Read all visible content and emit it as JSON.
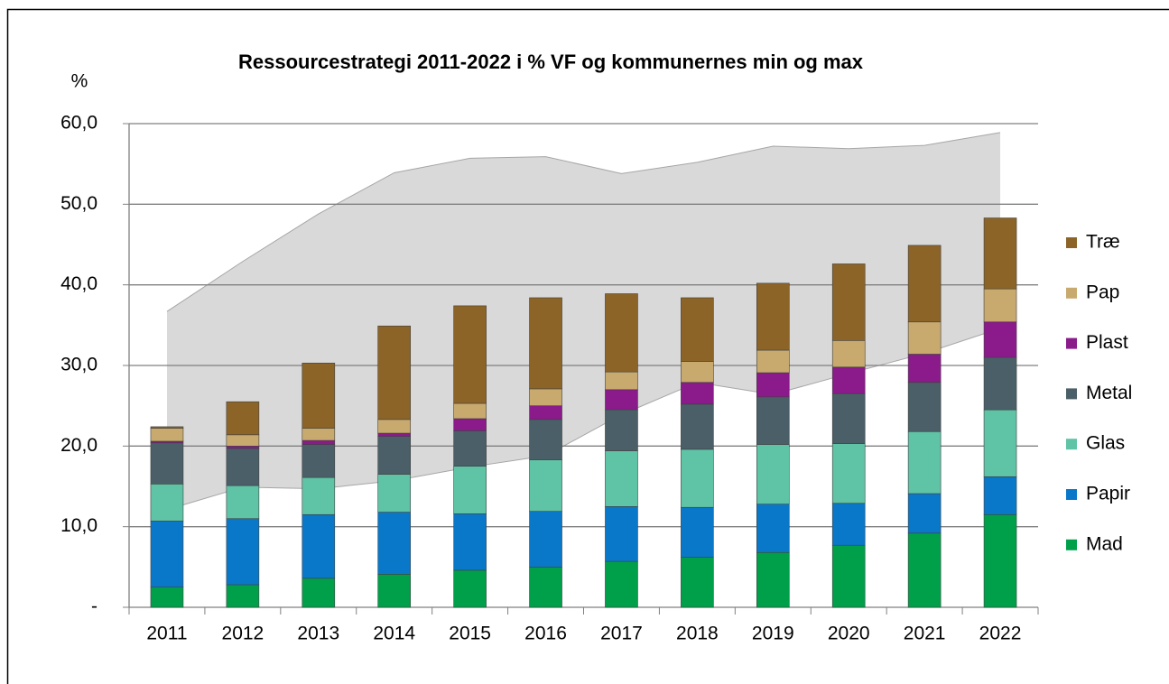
{
  "chart_data": {
    "type": "bar",
    "stacked": true,
    "title": "Ressourcestrategi 2011-2022 i %  VF og kommunernes min og max",
    "y_label": "%",
    "categories": [
      "2011",
      "2012",
      "2013",
      "2014",
      "2015",
      "2016",
      "2017",
      "2018",
      "2019",
      "2020",
      "2021",
      "2022"
    ],
    "series": [
      {
        "name": "Mad",
        "color": "#00a04b",
        "values": [
          2.5,
          2.8,
          3.6,
          4.1,
          4.6,
          5.0,
          5.7,
          6.2,
          6.8,
          7.7,
          9.2,
          11.5
        ]
      },
      {
        "name": "Papir",
        "color": "#0a78c8",
        "values": [
          8.2,
          8.2,
          7.9,
          7.7,
          7.0,
          6.9,
          6.8,
          6.2,
          6.0,
          5.2,
          4.9,
          4.7
        ]
      },
      {
        "name": "Glas",
        "color": "#5fc3a5",
        "values": [
          4.6,
          4.1,
          4.6,
          4.7,
          5.9,
          6.4,
          6.9,
          7.2,
          7.4,
          7.4,
          7.7,
          8.3
        ]
      },
      {
        "name": "Metal",
        "color": "#4a5f68",
        "values": [
          5.1,
          4.6,
          4.1,
          4.7,
          4.4,
          5.0,
          5.1,
          5.6,
          5.9,
          6.2,
          6.1,
          6.5
        ]
      },
      {
        "name": "Plast",
        "color": "#8b1a8b",
        "values": [
          0.2,
          0.3,
          0.5,
          0.4,
          1.5,
          1.7,
          2.5,
          2.7,
          3.0,
          3.3,
          3.5,
          4.4
        ]
      },
      {
        "name": "Pap",
        "color": "#c8aa6e",
        "values": [
          1.6,
          1.4,
          1.5,
          1.7,
          1.9,
          2.1,
          2.2,
          2.6,
          2.8,
          3.3,
          4.0,
          4.1
        ]
      },
      {
        "name": "Træ",
        "color": "#8c6428",
        "values": [
          0.2,
          4.1,
          8.1,
          11.6,
          12.1,
          11.3,
          9.7,
          7.9,
          8.3,
          9.5,
          9.5,
          8.8
        ]
      }
    ],
    "band": {
      "color": "#d9d9d9",
      "min": [
        12.1,
        14.9,
        14.7,
        15.7,
        17.4,
        18.8,
        23.9,
        27.9,
        26.4,
        29.0,
        31.5,
        34.6
      ],
      "max": [
        36.7,
        42.9,
        48.8,
        53.9,
        55.7,
        55.9,
        53.8,
        55.2,
        57.2,
        56.9,
        57.3,
        58.9
      ]
    },
    "ylim": [
      0,
      60
    ],
    "yticks": [
      {
        "value": 0,
        "label": "-"
      },
      {
        "value": 10,
        "label": "10,0"
      },
      {
        "value": 20,
        "label": "20,0"
      },
      {
        "value": 30,
        "label": "30,0"
      },
      {
        "value": 40,
        "label": "40,0"
      },
      {
        "value": 50,
        "label": "50,0"
      },
      {
        "value": 60,
        "label": "60,0"
      }
    ],
    "grid": true,
    "legend": "right"
  }
}
